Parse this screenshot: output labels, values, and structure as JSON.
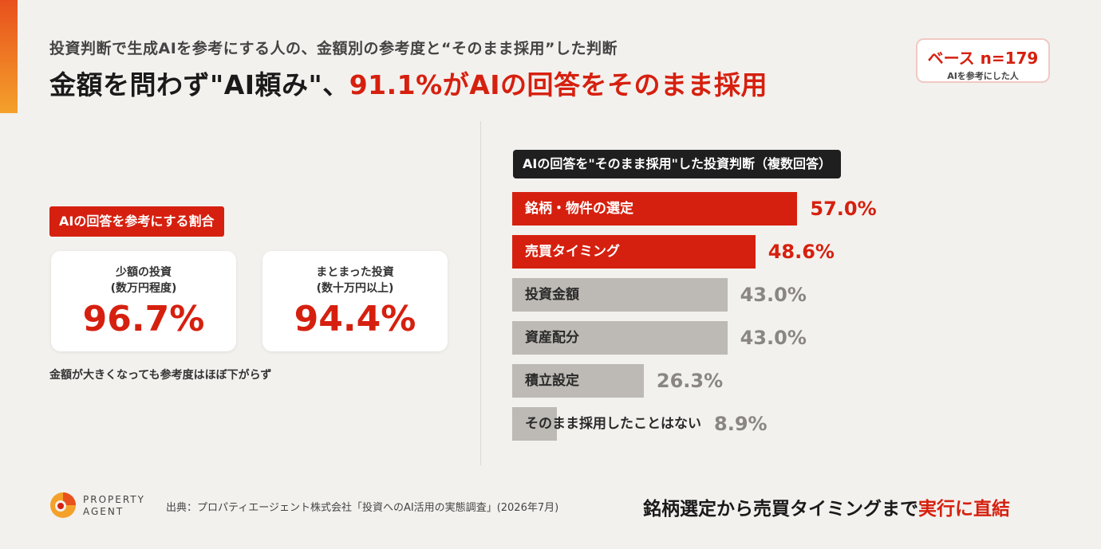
{
  "header": {
    "subtitle": "投資判断で生成AIを参考にする人の、金額別の参考度と“そのまま採用”した判断",
    "headline_black": "金額を問わず\"AI頼み\"、",
    "headline_red": "91.1%がAIの回答をそのまま採用"
  },
  "base": {
    "count": "ベース n=179",
    "desc": "AIを参考にした人"
  },
  "left": {
    "tag": "AIの回答を参考にする割合",
    "cards": [
      {
        "label1": "少額の投資",
        "label2": "(数万円程度)",
        "value": "96.7%"
      },
      {
        "label1": "まとまった投資",
        "label2": "(数十万円以上)",
        "value": "94.4%"
      }
    ],
    "note": "金額が大きくなっても参考度はほぼ下がらず"
  },
  "chart_data": {
    "type": "bar",
    "orientation": "horizontal",
    "title": "AIの回答を\"そのまま採用\"した投資判断（複数回答）",
    "categories": [
      "銘柄・物件の選定",
      "売買タイミング",
      "投資金額",
      "資産配分",
      "積立設定",
      "そのまま採用したことはない"
    ],
    "values": [
      57.0,
      48.6,
      43.0,
      43.0,
      26.3,
      8.9
    ],
    "value_labels": [
      "57.0%",
      "48.6%",
      "43.0%",
      "43.0%",
      "26.3%",
      "8.9%"
    ],
    "highlight": [
      true,
      true,
      false,
      false,
      false,
      false
    ],
    "colors": {
      "highlight": "#d6200f",
      "normal": "#bdb9b4",
      "highlight_value": "#d6200f",
      "normal_value": "#8a8683"
    },
    "xlim": [
      0,
      100
    ]
  },
  "footer": {
    "logo_line1": "PROPERTY",
    "logo_line2": "AGENT",
    "source": "出典：プロパティエージェント株式会社「投資へのAI活用の実態調査」(2026年7月)",
    "conclusion_black": "銘柄選定から売買タイミングまで",
    "conclusion_red": "実行に直結"
  }
}
